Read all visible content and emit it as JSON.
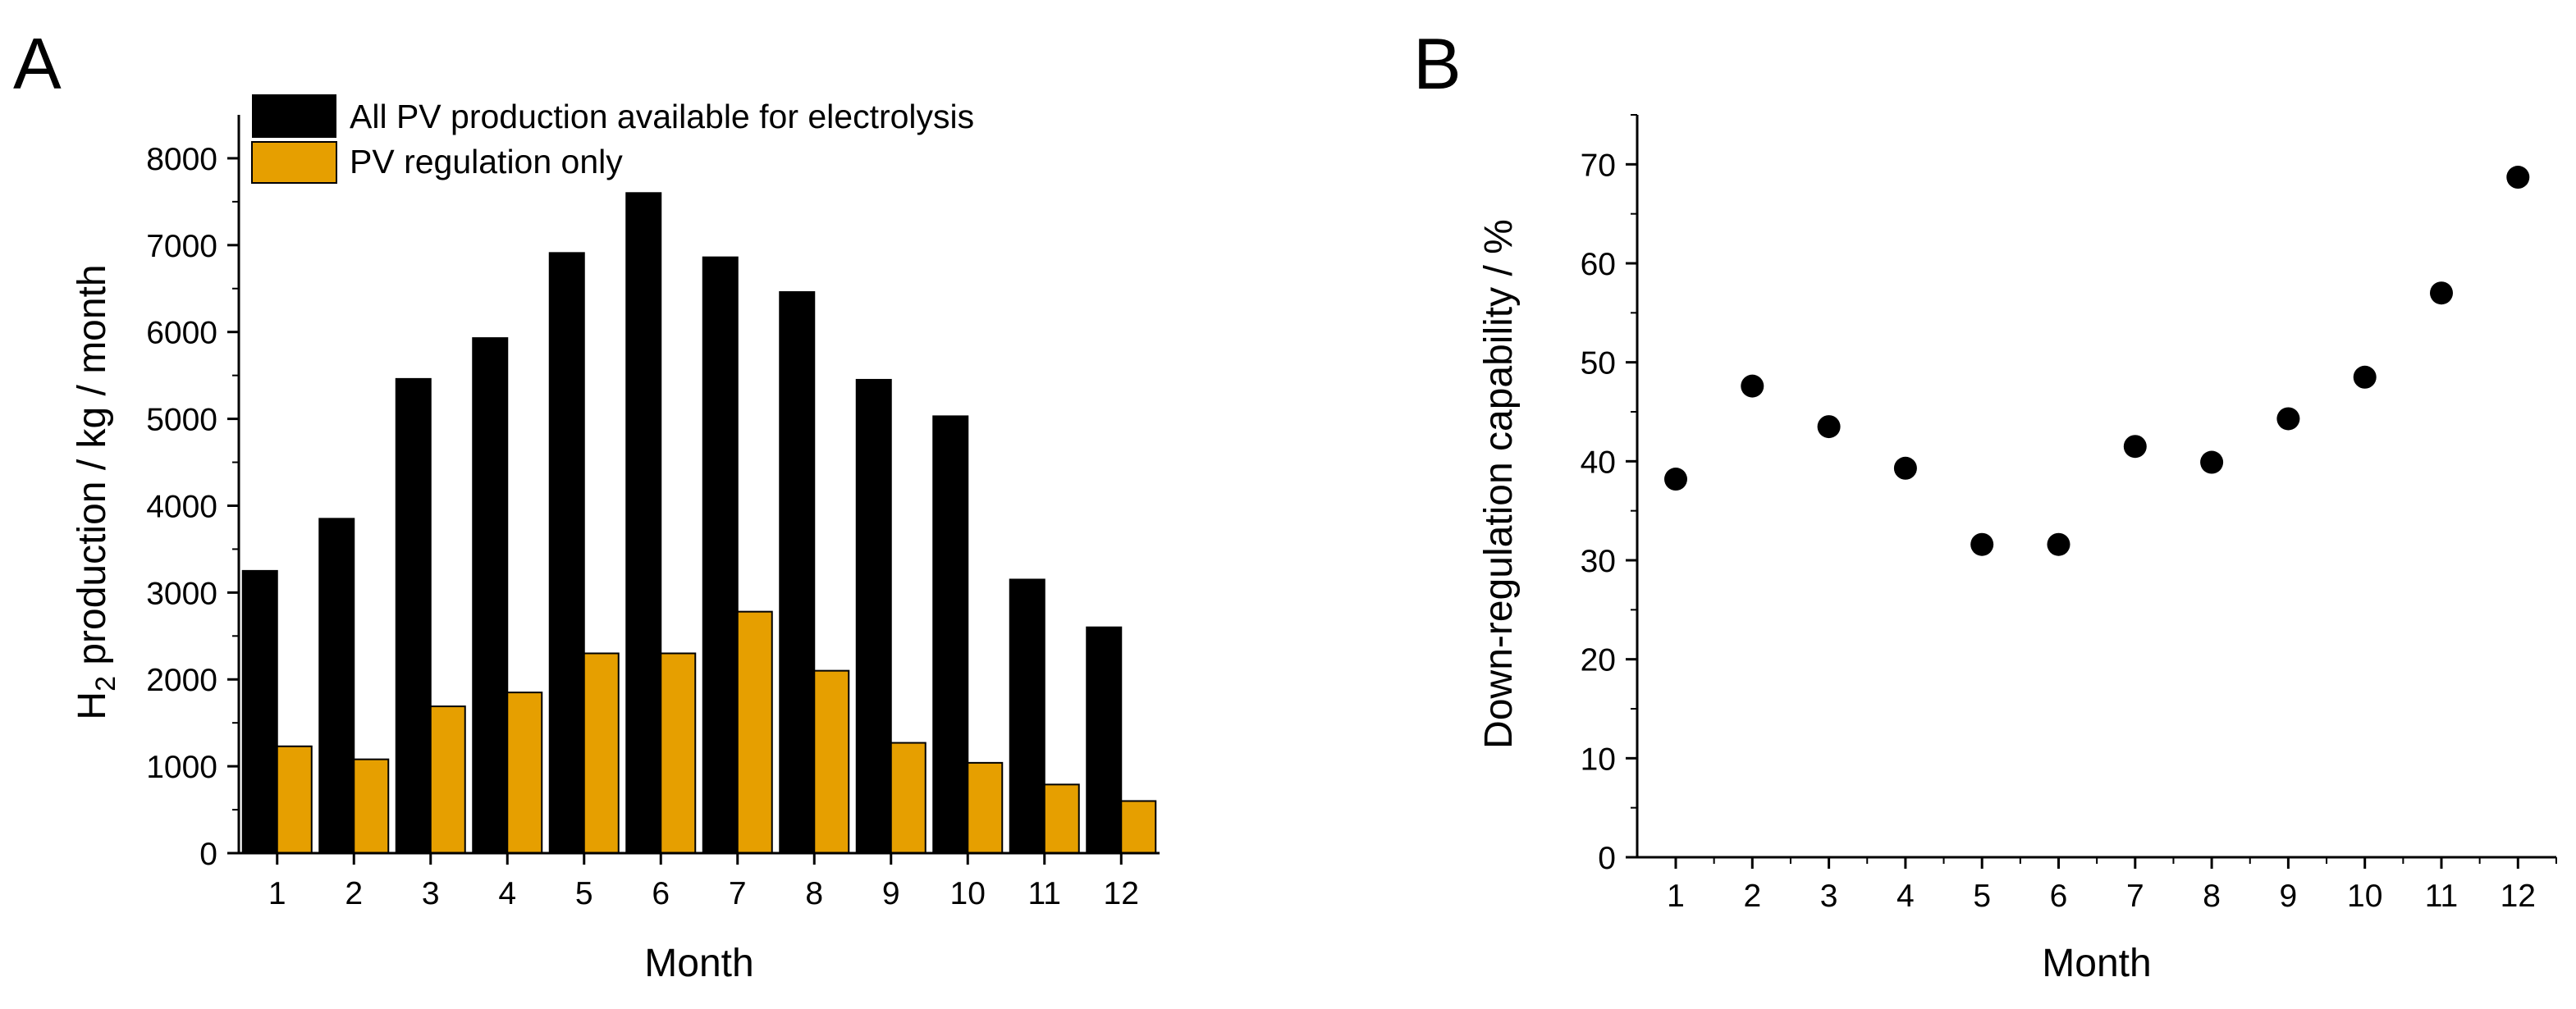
{
  "chart_data": [
    {
      "panel_label": "A",
      "type": "bar",
      "categories": [
        "1",
        "2",
        "3",
        "4",
        "5",
        "6",
        "7",
        "8",
        "9",
        "10",
        "11",
        "12"
      ],
      "series": [
        {
          "name": "All PV production available for electrolysis",
          "color": "#000000",
          "values": [
            3250,
            3850,
            5460,
            5930,
            6910,
            7600,
            6860,
            6460,
            5450,
            5030,
            3150,
            2600
          ]
        },
        {
          "name": "PV regulation only",
          "color": "#E69F00",
          "values": [
            1230,
            1080,
            1690,
            1850,
            2300,
            2300,
            2780,
            2100,
            1270,
            1040,
            790,
            600
          ]
        }
      ],
      "title": "",
      "xlabel": "Month",
      "ylabel_parts": {
        "main": "H",
        "sub": "2",
        "rest": " production / kg / month"
      },
      "ylim": [
        0,
        8500
      ],
      "yticks": [
        "0",
        "1000",
        "2000",
        "3000",
        "4000",
        "5000",
        "6000",
        "7000",
        "8000"
      ],
      "grid": false,
      "legend_position": "top-left"
    },
    {
      "panel_label": "B",
      "type": "scatter",
      "x": [
        1,
        2,
        3,
        4,
        5,
        6,
        7,
        8,
        9,
        10,
        11,
        12
      ],
      "xticks": [
        "1",
        "2",
        "3",
        "4",
        "5",
        "6",
        "7",
        "8",
        "9",
        "10",
        "11",
        "12"
      ],
      "y": [
        38.2,
        47.6,
        43.5,
        39.3,
        31.6,
        31.6,
        41.5,
        39.9,
        44.3,
        48.5,
        57.0,
        68.7
      ],
      "title": "",
      "xlabel": "Month",
      "ylabel": "Down-regulation capability / %",
      "ylim": [
        0,
        75
      ],
      "yticks": [
        "0",
        "10",
        "20",
        "30",
        "40",
        "50",
        "60",
        "70"
      ],
      "grid": false,
      "marker_color": "#000000"
    }
  ]
}
